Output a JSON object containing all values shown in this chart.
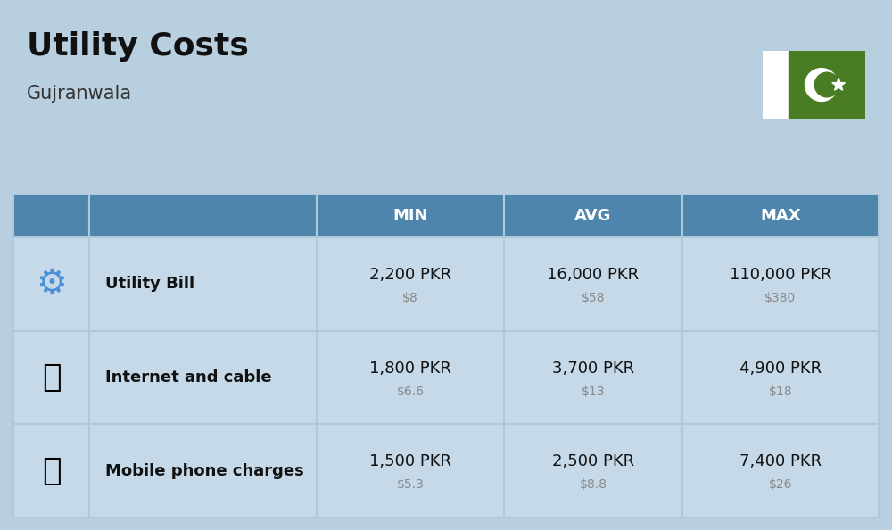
{
  "title": "Utility Costs",
  "subtitle": "Gujranwala",
  "background_color": "#b8cfe0",
  "header_color": "#4d85ad",
  "header_text_color": "#ffffff",
  "row_bg_color": "#c5d9e8",
  "col_header_color": "#4d85ad",
  "table_border_color": "#b0c8dc",
  "headers": [
    "MIN",
    "AVG",
    "MAX"
  ],
  "rows": [
    {
      "label": "Utility Bill",
      "min_pkr": "2,200 PKR",
      "min_usd": "$8",
      "avg_pkr": "16,000 PKR",
      "avg_usd": "$58",
      "max_pkr": "110,000 PKR",
      "max_usd": "$380"
    },
    {
      "label": "Internet and cable",
      "min_pkr": "1,800 PKR",
      "min_usd": "$6.6",
      "avg_pkr": "3,700 PKR",
      "avg_usd": "$13",
      "max_pkr": "4,900 PKR",
      "max_usd": "$18"
    },
    {
      "label": "Mobile phone charges",
      "min_pkr": "1,500 PKR",
      "min_usd": "$5.3",
      "avg_pkr": "2,500 PKR",
      "avg_usd": "$8.8",
      "max_pkr": "7,400 PKR",
      "max_usd": "$26"
    }
  ],
  "flag_green": "#4a7c23",
  "flag_white": "#ffffff",
  "title_fontsize": 26,
  "subtitle_fontsize": 15,
  "header_fontsize": 13,
  "label_fontsize": 13,
  "value_fontsize": 13,
  "usd_fontsize": 10,
  "usd_color": "#888888",
  "label_color": "#111111",
  "value_color": "#111111"
}
